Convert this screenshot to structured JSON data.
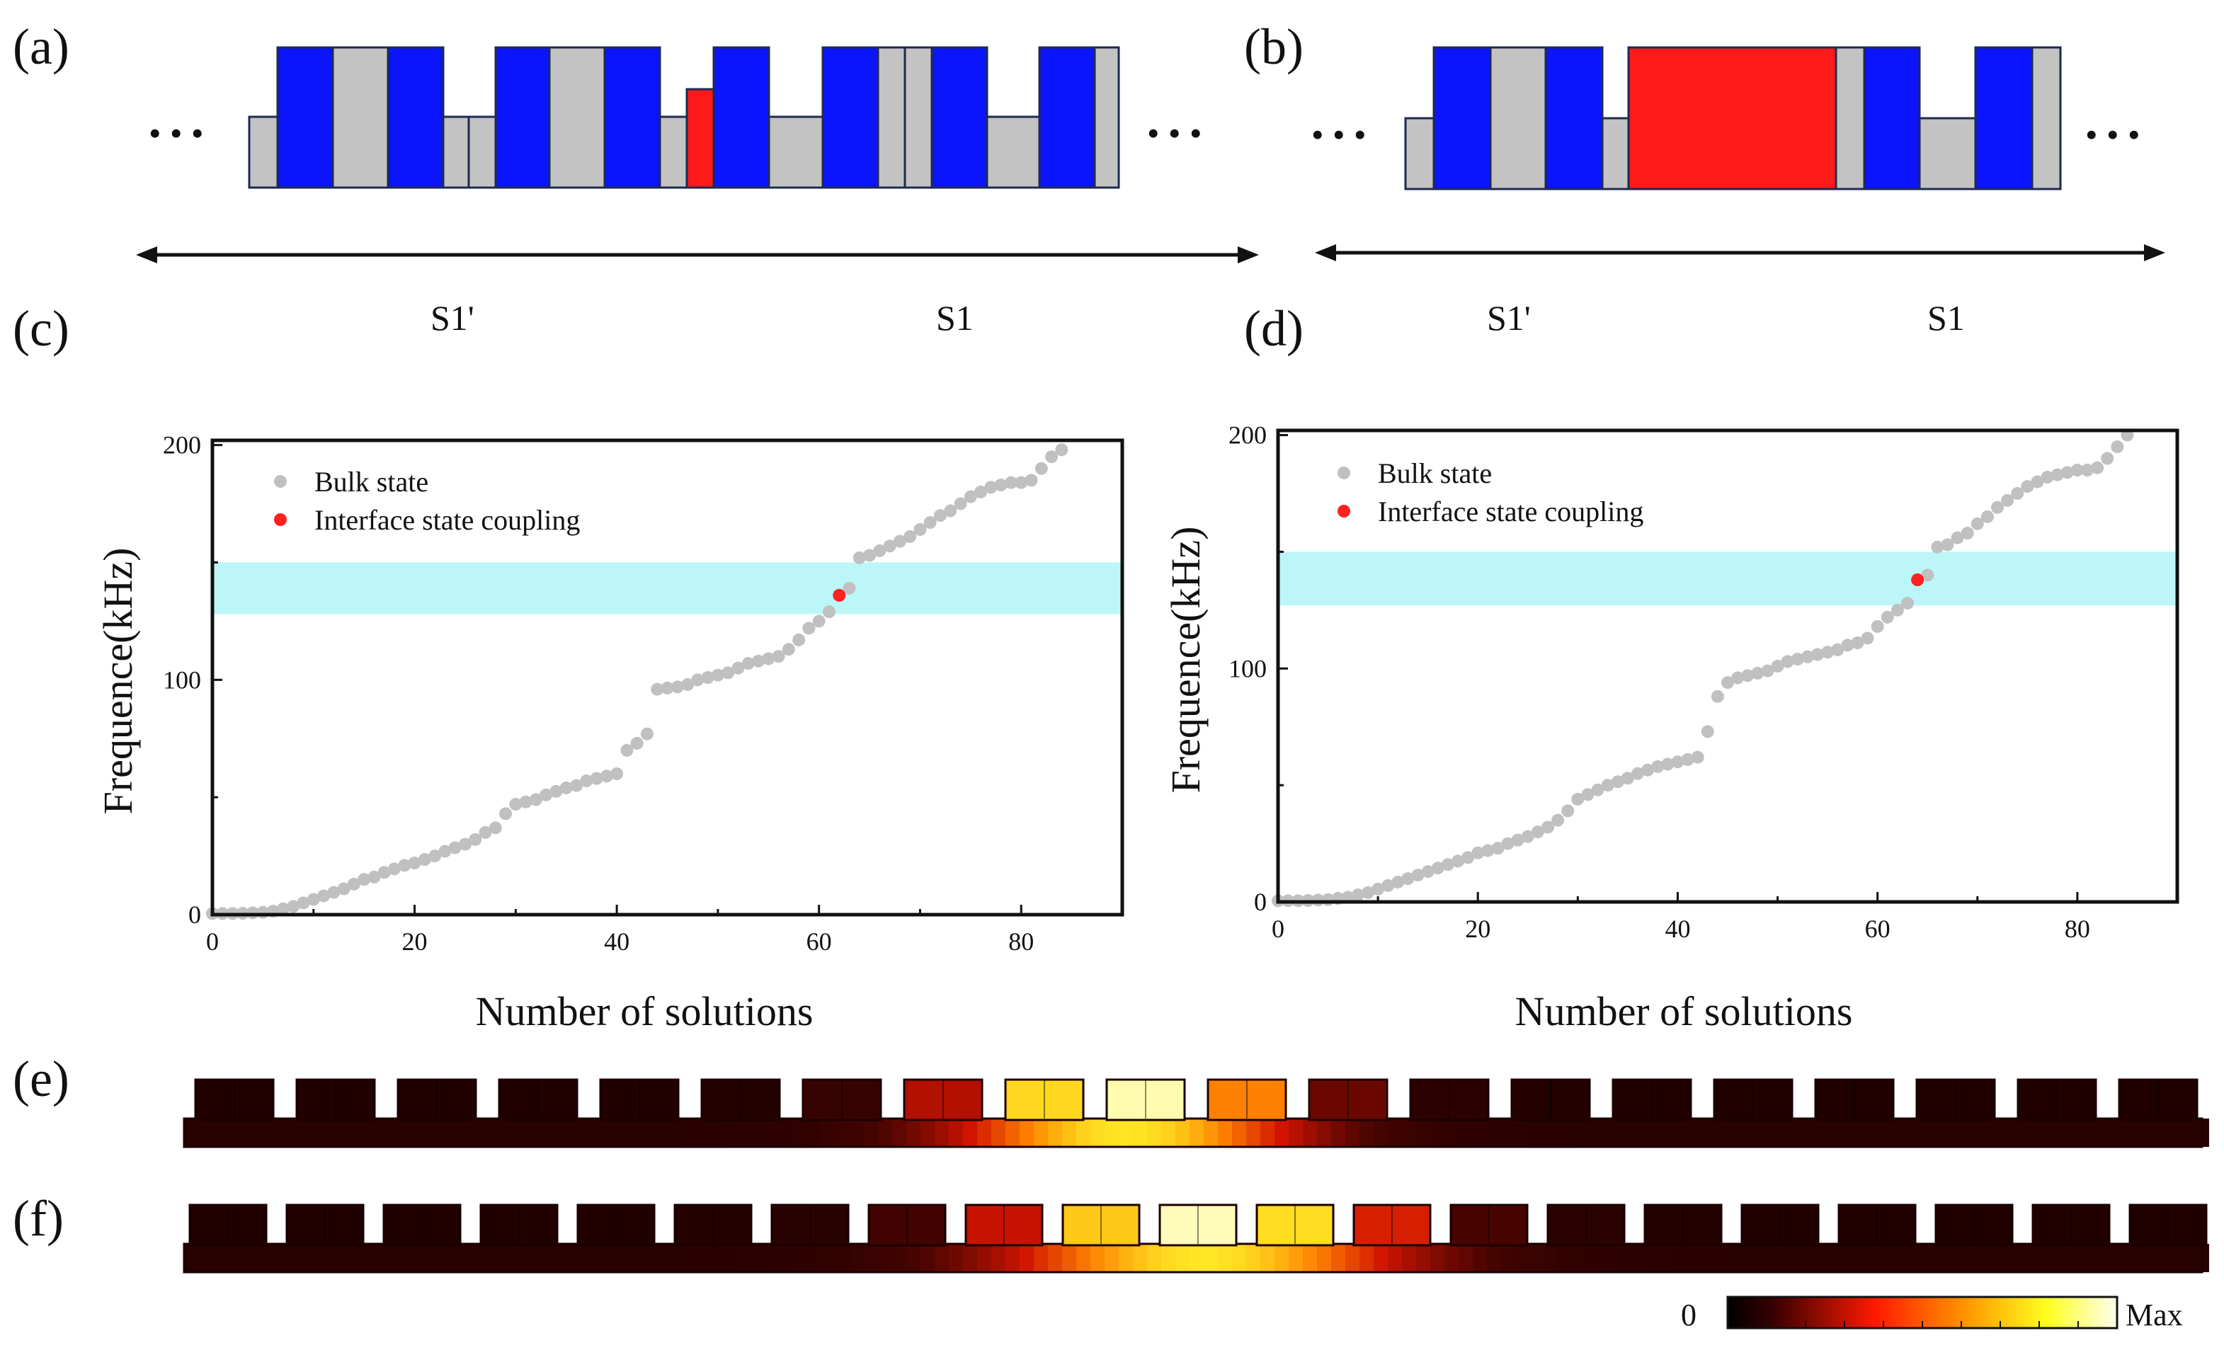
{
  "panels": {
    "a": "(a)",
    "b": "(b)",
    "c": "(c)",
    "d": "(d)",
    "e": "(e)",
    "f": "(f)"
  },
  "dots": "• • •",
  "region_labels": {
    "left": "S1'",
    "right": "S1"
  },
  "colors": {
    "blue": "#0a14ff",
    "gray": "#c3c3c3",
    "red": "#ff1a1a",
    "bulk": "#c0c0c0",
    "interface": "#ff2020",
    "band": "#bdf6f8"
  },
  "colorbar": {
    "min_label": "0",
    "max_label": "Max"
  },
  "chart_data": [
    {
      "type": "scatter",
      "panel": "c",
      "xlabel": "Number of solutions",
      "ylabel": "Frequence(kHz)",
      "xlim": [
        0,
        90
      ],
      "ylim": [
        0,
        202
      ],
      "xticks": [
        0,
        20,
        40,
        60,
        80
      ],
      "yticks": [
        0,
        100,
        200
      ],
      "band": [
        128,
        150
      ],
      "legend": {
        "bulk": "Bulk state",
        "interface": "Interface state coupling"
      },
      "series": [
        {
          "name": "Bulk state",
          "points": [
            [
              0,
              0.5
            ],
            [
              1,
              0.5
            ],
            [
              2,
              0.5
            ],
            [
              3,
              0.6
            ],
            [
              4,
              0.8
            ],
            [
              5,
              1
            ],
            [
              6,
              1.5
            ],
            [
              7,
              2.5
            ],
            [
              8,
              3.5
            ],
            [
              9,
              5
            ],
            [
              10,
              6.5
            ],
            [
              11,
              8
            ],
            [
              12,
              9.5
            ],
            [
              13,
              11
            ],
            [
              14,
              13
            ],
            [
              15,
              15
            ],
            [
              16,
              16
            ],
            [
              17,
              18
            ],
            [
              18,
              19.5
            ],
            [
              19,
              21
            ],
            [
              20,
              22
            ],
            [
              21,
              23.5
            ],
            [
              22,
              25
            ],
            [
              23,
              27
            ],
            [
              24,
              28.5
            ],
            [
              25,
              30
            ],
            [
              26,
              32
            ],
            [
              27,
              35
            ],
            [
              28,
              37
            ],
            [
              29,
              43
            ],
            [
              30,
              47
            ],
            [
              31,
              48
            ],
            [
              32,
              49
            ],
            [
              33,
              51
            ],
            [
              34,
              52.5
            ],
            [
              35,
              54
            ],
            [
              36,
              55
            ],
            [
              37,
              57
            ],
            [
              38,
              58
            ],
            [
              39,
              59
            ],
            [
              40,
              60
            ],
            [
              41,
              70
            ],
            [
              42,
              73
            ],
            [
              43,
              77
            ],
            [
              44,
              96
            ],
            [
              45,
              96.5
            ],
            [
              46,
              97
            ],
            [
              47,
              98
            ],
            [
              48,
              100
            ],
            [
              49,
              101
            ],
            [
              50,
              102
            ],
            [
              51,
              103
            ],
            [
              52,
              105
            ],
            [
              53,
              107
            ],
            [
              54,
              108
            ],
            [
              55,
              109
            ],
            [
              56,
              110
            ],
            [
              57,
              113
            ],
            [
              58,
              117
            ],
            [
              59,
              122
            ],
            [
              60,
              125
            ],
            [
              61,
              129
            ],
            [
              63,
              139
            ],
            [
              64,
              152
            ],
            [
              65,
              153
            ],
            [
              66,
              155
            ],
            [
              67,
              157
            ],
            [
              68,
              159
            ],
            [
              69,
              161
            ],
            [
              70,
              164
            ],
            [
              71,
              167
            ],
            [
              72,
              170
            ],
            [
              73,
              172
            ],
            [
              74,
              175
            ],
            [
              75,
              178
            ],
            [
              76,
              180
            ],
            [
              77,
              182
            ],
            [
              78,
              183
            ],
            [
              79,
              184
            ],
            [
              80,
              184
            ],
            [
              81,
              185
            ],
            [
              82,
              190
            ],
            [
              83,
              195
            ],
            [
              84,
              198
            ]
          ]
        },
        {
          "name": "Interface state coupling",
          "points": [
            [
              62,
              136
            ]
          ]
        }
      ]
    },
    {
      "type": "scatter",
      "panel": "d",
      "xlabel": "Number of solutions",
      "ylabel": "Frequence(kHz)",
      "xlim": [
        0,
        90
      ],
      "ylim": [
        0,
        202
      ],
      "xticks": [
        0,
        20,
        40,
        60,
        80
      ],
      "yticks": [
        0,
        100,
        200
      ],
      "band": [
        127,
        150
      ],
      "legend": {
        "bulk": "Bulk state",
        "interface": "Interface state coupling"
      },
      "series": [
        {
          "name": "Bulk state",
          "points": [
            [
              0,
              0.5
            ],
            [
              1,
              0.5
            ],
            [
              2,
              0.5
            ],
            [
              3,
              0.6
            ],
            [
              4,
              0.8
            ],
            [
              5,
              1
            ],
            [
              6,
              1.5
            ],
            [
              7,
              2
            ],
            [
              8,
              3
            ],
            [
              9,
              4
            ],
            [
              10,
              5.5
            ],
            [
              11,
              7
            ],
            [
              12,
              8.5
            ],
            [
              13,
              10
            ],
            [
              14,
              11.5
            ],
            [
              15,
              13
            ],
            [
              16,
              14.5
            ],
            [
              17,
              16
            ],
            [
              18,
              17.5
            ],
            [
              19,
              19
            ],
            [
              20,
              21
            ],
            [
              21,
              22
            ],
            [
              22,
              23
            ],
            [
              23,
              25
            ],
            [
              24,
              26.5
            ],
            [
              25,
              28
            ],
            [
              26,
              30
            ],
            [
              27,
              32
            ],
            [
              28,
              35
            ],
            [
              29,
              39
            ],
            [
              30,
              44
            ],
            [
              31,
              46
            ],
            [
              32,
              48
            ],
            [
              33,
              50
            ],
            [
              34,
              51.5
            ],
            [
              35,
              53
            ],
            [
              36,
              55
            ],
            [
              37,
              56.5
            ],
            [
              38,
              58
            ],
            [
              39,
              59
            ],
            [
              40,
              60
            ],
            [
              41,
              61
            ],
            [
              42,
              62
            ],
            [
              43,
              73
            ],
            [
              44,
              88
            ],
            [
              45,
              94
            ],
            [
              46,
              96
            ],
            [
              47,
              97
            ],
            [
              48,
              98
            ],
            [
              49,
              99
            ],
            [
              50,
              101
            ],
            [
              51,
              103
            ],
            [
              52,
              104
            ],
            [
              53,
              105
            ],
            [
              54,
              106
            ],
            [
              55,
              107
            ],
            [
              56,
              108
            ],
            [
              57,
              110
            ],
            [
              58,
              111
            ],
            [
              59,
              113
            ],
            [
              60,
              118
            ],
            [
              61,
              122
            ],
            [
              62,
              125
            ],
            [
              63,
              128
            ],
            [
              65,
              140
            ],
            [
              66,
              152
            ],
            [
              67,
              153
            ],
            [
              68,
              156
            ],
            [
              69,
              158
            ],
            [
              70,
              162
            ],
            [
              71,
              165
            ],
            [
              72,
              169
            ],
            [
              73,
              172
            ],
            [
              74,
              175
            ],
            [
              75,
              178
            ],
            [
              76,
              180
            ],
            [
              77,
              182
            ],
            [
              78,
              183
            ],
            [
              79,
              184
            ],
            [
              80,
              185
            ],
            [
              81,
              185
            ],
            [
              82,
              186
            ],
            [
              83,
              190
            ],
            [
              84,
              195
            ],
            [
              85,
              200
            ]
          ]
        },
        {
          "name": "Interface state coupling",
          "points": [
            [
              64,
              138
            ]
          ]
        }
      ]
    }
  ]
}
